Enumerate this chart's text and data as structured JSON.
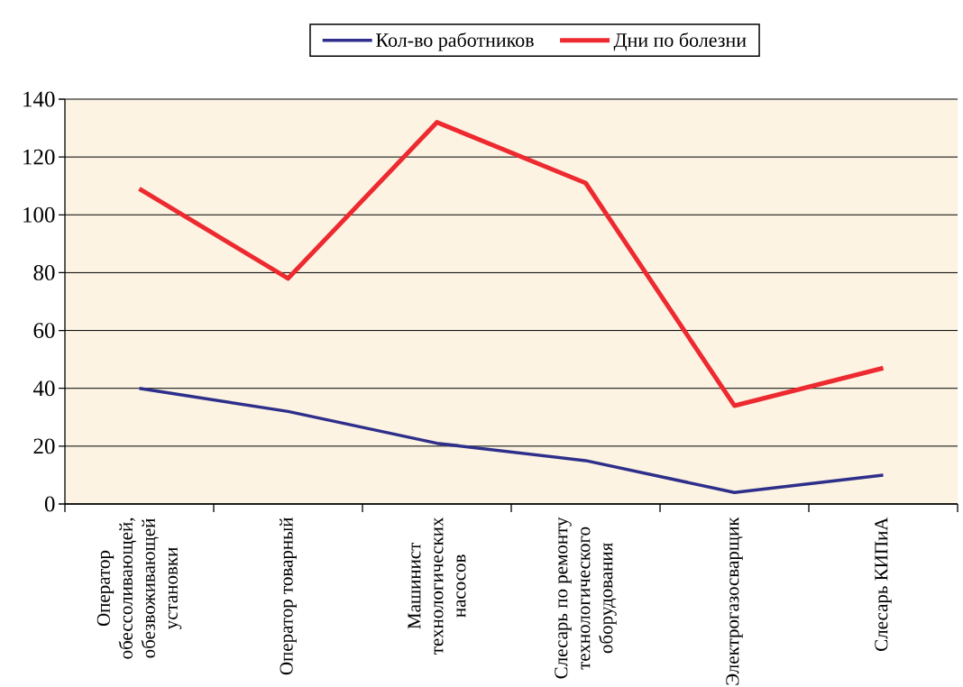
{
  "chart_data": {
    "type": "line",
    "categories": [
      "Оператор обессоливающей, обезвоживающей установки",
      "Оператор товарный",
      "Машинист технологических насосов",
      "Слесарь по ремонту технологического оборудования",
      "Электрогазосварщик",
      "Слесарь КИПиА"
    ],
    "series": [
      {
        "name": "Кол-во работников",
        "color": "#2e2f8b",
        "values": [
          40,
          32,
          21,
          15,
          4,
          10
        ]
      },
      {
        "name": "Дни по болезни",
        "color": "#ed2a30",
        "values": [
          109,
          78,
          132,
          111,
          34,
          47
        ]
      }
    ],
    "ylim": [
      0,
      140
    ],
    "yticks": [
      0,
      20,
      40,
      60,
      80,
      100,
      120,
      140
    ],
    "grid": "y",
    "legend": "top",
    "line_style": "solid"
  }
}
